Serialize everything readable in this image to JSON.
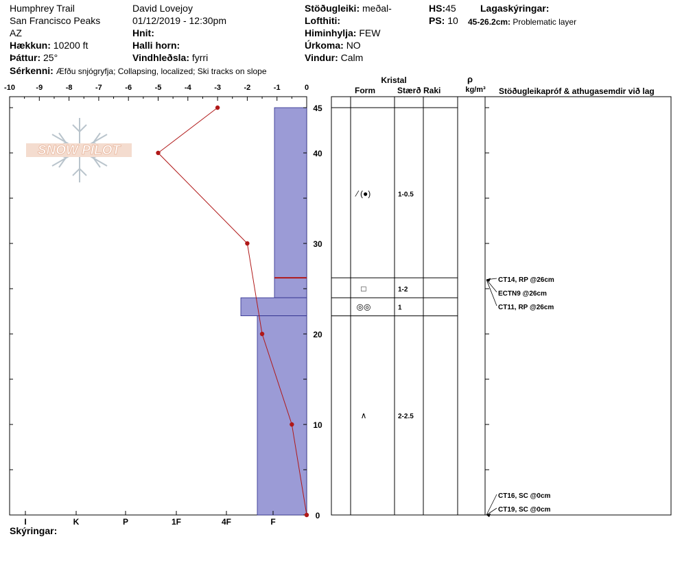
{
  "header": {
    "location": "Humphrey Trail",
    "range": "San Francisco Peaks",
    "state": "AZ",
    "elevation_label": "Hækkun:",
    "elevation_value": "10200 ft",
    "aspect_label": "Þáttur:",
    "aspect_value": "25°",
    "observer": "David Lovejoy",
    "datetime": "01/12/2019 - 12:30pm",
    "coords_label": "Hnit:",
    "slope_label": "Halli horn:",
    "wind_loading_label": "Vindhleðsla:",
    "wind_loading_value": "fyrri",
    "stability_label": "Stöðugleiki:",
    "stability_value": "meðal-",
    "air_temp_label": "Lofthiti:",
    "sky_label": "Himinhylja:",
    "sky_value": "FEW",
    "precip_label": "Úrkoma:",
    "precip_value": "NO",
    "wind_label": "Vindur:",
    "wind_value": "Calm",
    "hs_label": "HS:",
    "hs_value": "45",
    "ps_label": "PS:",
    "ps_value": "10",
    "layer_notes_label": "Lagaskýringar:",
    "layer_note_range": "45-26.2cm:",
    "layer_note_text": "Problematic layer",
    "features_label": "Sérkenni:",
    "features_value": "Æfðu snjógryfja;  Collapsing, localized;  Ski tracks on slope"
  },
  "logo": {
    "text": "SNOW PILOT"
  },
  "table_headers": {
    "crystal": "Kristal",
    "form": "Form",
    "size": "Stærð",
    "moisture": "Raki",
    "rho": "ρ",
    "density_unit": "kg/m³",
    "tests": "Stöðugleikapróf & athugasemdir við lag"
  },
  "footer": {
    "notes_label": "Skýringar:"
  },
  "colors": {
    "hardness_fill": "#9b9bd6",
    "temp_line": "#b01818"
  },
  "chart_data": {
    "type": "snow_profile",
    "temperature_axis": {
      "ticks": [
        "-10",
        "-9",
        "-8",
        "-7",
        "-6",
        "-5",
        "-4",
        "-3",
        "-2",
        "-1",
        "0"
      ],
      "range": [
        -10,
        0
      ]
    },
    "height_axis": {
      "ticks": [
        "45",
        "40",
        "30",
        "20",
        "10",
        "0"
      ],
      "range": [
        0,
        45
      ]
    },
    "hardness_axis": {
      "ticks": [
        "I",
        "K",
        "P",
        "1F",
        "4F",
        "F"
      ]
    },
    "temperature_profile": [
      {
        "height": 45,
        "temp": -3
      },
      {
        "height": 40,
        "temp": -5
      },
      {
        "height": 30,
        "temp": -2
      },
      {
        "height": 20,
        "temp": -1.5
      },
      {
        "height": 10,
        "temp": -0.5
      },
      {
        "height": 0,
        "temp": 0
      }
    ],
    "hardness_layers": [
      {
        "top": 45,
        "bottom": 26.2,
        "hardness": "F"
      },
      {
        "top": 26.2,
        "bottom": 24,
        "hardness": "F"
      },
      {
        "top": 24,
        "bottom": 22,
        "hardness": "4F-"
      },
      {
        "top": 22,
        "bottom": 0,
        "hardness": "F+"
      }
    ],
    "layer_boundaries": [
      45,
      26.2,
      24,
      22
    ],
    "crystals": [
      {
        "height": 35.5,
        "form": "⁄ (●)",
        "size": "1-0.5"
      },
      {
        "height": 25.0,
        "form": "□",
        "size": "1-2"
      },
      {
        "height": 23.0,
        "form": "◎◎",
        "size": "1"
      },
      {
        "height": 11.0,
        "form": "∧",
        "size": "2-2.5"
      }
    ],
    "stability_tests": [
      {
        "text": "CT14, RP @26cm",
        "target": 26
      },
      {
        "text": "ECTN9 @26cm",
        "target": 26
      },
      {
        "text": "CT11, RP @26cm",
        "target": 26
      },
      {
        "text": "CT16, SC @0cm",
        "target": 0
      },
      {
        "text": "CT19, SC @0cm",
        "target": 0
      }
    ]
  }
}
